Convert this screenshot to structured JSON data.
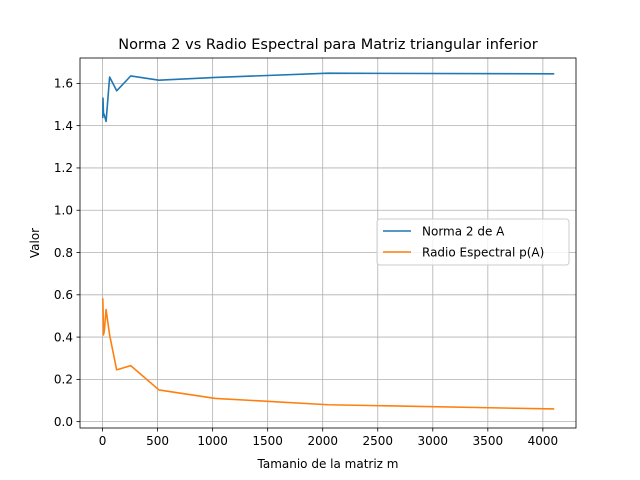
{
  "chart_data": {
    "type": "line",
    "title": "Norma 2 vs Radio Espectral para Matriz triangular inferior",
    "xlabel": "Tamanio de la matriz m",
    "ylabel": "Valor",
    "xlim": [
      -205,
      4301
    ],
    "ylim": [
      -0.03,
      1.72
    ],
    "xticks": [
      0,
      500,
      1000,
      1500,
      2000,
      2500,
      3000,
      3500,
      4000
    ],
    "xtick_labels": [
      "0",
      "500",
      "1000",
      "1500",
      "2000",
      "2500",
      "3000",
      "3500",
      "4000"
    ],
    "yticks": [
      0.0,
      0.2,
      0.4,
      0.6,
      0.8,
      1.0,
      1.2,
      1.4,
      1.6
    ],
    "ytick_labels": [
      "0.0",
      "0.2",
      "0.4",
      "0.6",
      "0.8",
      "1.0",
      "1.2",
      "1.4",
      "1.6"
    ],
    "grid": true,
    "legend_position": "center-right",
    "series": [
      {
        "name": "Norma 2 de A",
        "color": "#1f77b4",
        "x": [
          2,
          4,
          8,
          16,
          32,
          64,
          128,
          256,
          512,
          1024,
          2048,
          4096
        ],
        "y": [
          1.44,
          1.53,
          1.46,
          1.45,
          1.42,
          1.63,
          1.565,
          1.635,
          1.615,
          1.628,
          1.648,
          1.645
        ]
      },
      {
        "name": "Radio Espectral p(A)",
        "color": "#ff7f0e",
        "x": [
          2,
          4,
          8,
          16,
          32,
          64,
          128,
          256,
          512,
          1024,
          2048,
          4096
        ],
        "y": [
          0.58,
          0.55,
          0.41,
          0.43,
          0.53,
          0.41,
          0.245,
          0.265,
          0.15,
          0.11,
          0.08,
          0.06
        ]
      }
    ]
  }
}
